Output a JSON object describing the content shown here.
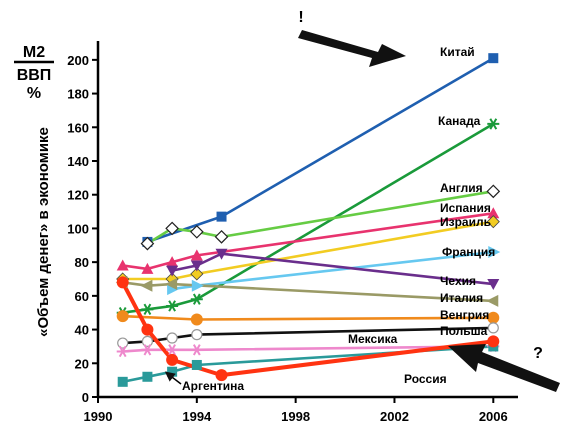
{
  "chart_data": {
    "type": "line",
    "y_unit_top": "М2",
    "y_unit_bottom": "ВВП",
    "y_unit_pct": "%",
    "ylabel": "«Объем денег» в экономике",
    "xlim": [
      1990,
      2007
    ],
    "ylim": [
      0,
      210
    ],
    "x_ticks": [
      1990,
      1994,
      1998,
      2002,
      2006
    ],
    "y_ticks": [
      0,
      20,
      40,
      60,
      80,
      100,
      120,
      140,
      160,
      180,
      200
    ],
    "annotations": {
      "exclaim": "!",
      "question": "?"
    },
    "series": [
      {
        "name": "Китай",
        "color": "#1f5fb0",
        "marker": "square",
        "points": [
          [
            1992,
            92
          ],
          [
            1995,
            107
          ],
          [
            2006,
            201
          ]
        ]
      },
      {
        "name": "Канада",
        "color": "#1a9a3a",
        "marker": "star",
        "points": [
          [
            1991,
            50
          ],
          [
            1992,
            52
          ],
          [
            1993,
            54
          ],
          [
            1994,
            58
          ],
          [
            2006,
            162
          ]
        ]
      },
      {
        "name": "Англия",
        "color": "#66cc44",
        "marker": "diamond-open",
        "points": [
          [
            1992,
            91
          ],
          [
            1993,
            100
          ],
          [
            1994,
            98
          ],
          [
            1995,
            95
          ],
          [
            2006,
            122
          ]
        ]
      },
      {
        "name": "Испания",
        "color": "#e8336e",
        "marker": "triangle",
        "points": [
          [
            1991,
            78
          ],
          [
            1992,
            76
          ],
          [
            1993,
            80
          ],
          [
            1994,
            84
          ],
          [
            2006,
            109
          ]
        ]
      },
      {
        "name": "Израиль",
        "color": "#f2cc22",
        "marker": "diamond",
        "points": [
          [
            1991,
            70
          ],
          [
            1993,
            70
          ],
          [
            1994,
            73
          ],
          [
            2006,
            104
          ]
        ]
      },
      {
        "name": "Франция",
        "color": "#66c8f0",
        "marker": "arrow",
        "points": [
          [
            1993,
            64
          ],
          [
            1994,
            66
          ],
          [
            2006,
            86
          ]
        ]
      },
      {
        "name": "Чехия",
        "color": "#6a2e8c",
        "marker": "triangle-down",
        "points": [
          [
            1993,
            75
          ],
          [
            1994,
            78
          ],
          [
            1995,
            85
          ],
          [
            2006,
            67
          ]
        ]
      },
      {
        "name": "Италия",
        "color": "#9a9a66",
        "marker": "arrow-left",
        "points": [
          [
            1991,
            68
          ],
          [
            1992,
            66
          ],
          [
            1993,
            67
          ],
          [
            2006,
            57
          ]
        ]
      },
      {
        "name": "Венгрия",
        "color": "#f08a1c",
        "marker": "circle",
        "points": [
          [
            1991,
            48
          ],
          [
            1994,
            46
          ],
          [
            2006,
            47
          ]
        ]
      },
      {
        "name": "Польша",
        "color": "#111111",
        "marker": "circle-open",
        "points": [
          [
            1991,
            32
          ],
          [
            1992,
            33
          ],
          [
            1993,
            35
          ],
          [
            1994,
            37
          ],
          [
            2006,
            41
          ]
        ]
      },
      {
        "name": "Мексика",
        "color": "#ee88cc",
        "marker": "star",
        "points": [
          [
            1991,
            27
          ],
          [
            1992,
            28
          ],
          [
            1993,
            28
          ],
          [
            1994,
            28
          ],
          [
            2006,
            30
          ]
        ]
      },
      {
        "name": "Аргентина",
        "color": "#2a9a9a",
        "marker": "square",
        "points": [
          [
            1991,
            9
          ],
          [
            1992,
            12
          ],
          [
            1993,
            15
          ],
          [
            1994,
            19
          ],
          [
            2006,
            30
          ]
        ]
      },
      {
        "name": "Россия",
        "color": "#ff3311",
        "marker": "circle",
        "points": [
          [
            1991,
            68
          ],
          [
            1992,
            40
          ],
          [
            1993,
            22
          ],
          [
            1995,
            13
          ],
          [
            2006,
            33
          ]
        ]
      }
    ]
  }
}
